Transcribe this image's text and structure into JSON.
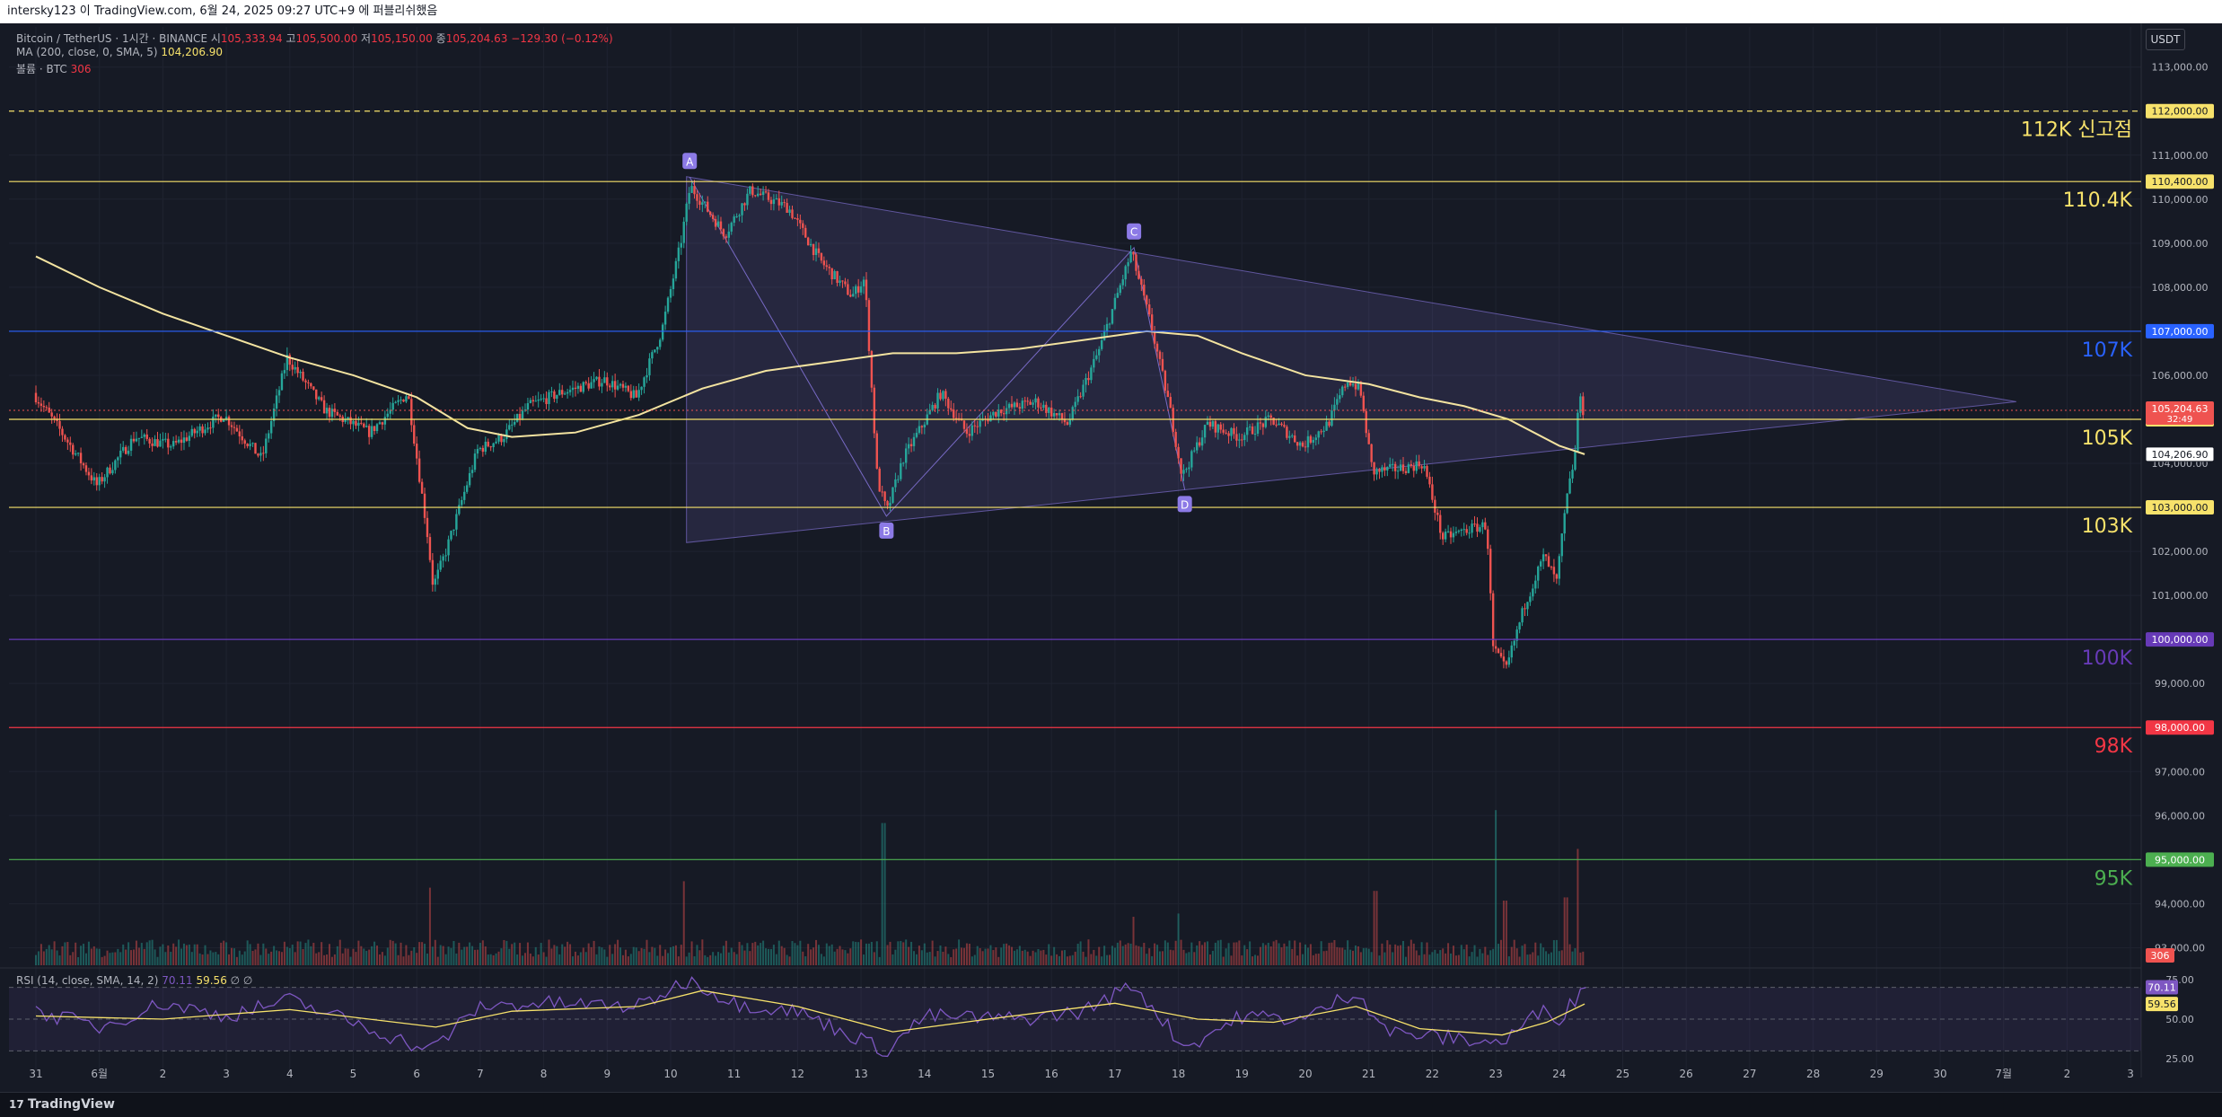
{
  "window": {
    "title": "intersky123 이 TradingView.com, 6월 24, 2025 09:27 UTC+9 에 퍼블리쉬했음"
  },
  "legend": {
    "symbol": "Bitcoin / TetherUS · 1시간 · BINANCE",
    "o_label": "시",
    "o_value": "105,333.94",
    "h_label": "고",
    "h_value": "105,500.00",
    "l_label": "저",
    "l_value": "105,150.00",
    "c_label": "종",
    "c_value": "105,204.63",
    "change": "−129.30 (−0.12%)",
    "ma_text": "MA (200, close, 0, SMA, 5)",
    "ma_value": "104,206.90",
    "vol_text": "볼륨 · BTC",
    "vol_value": "306",
    "rsi_text": "RSI (14, close, SMA, 14, 2)",
    "rsi_value": "70.11",
    "rsi_ma_value": "59.56",
    "rsi_extra": "∅  ∅"
  },
  "currency_button": "USDT",
  "brand": "TradingView",
  "colors": {
    "bg": "#161a25",
    "yellow": "#f7e26b",
    "blue": "#2962ff",
    "purple": "#673ab7",
    "red": "#f23645",
    "green": "#4caf50",
    "up": "#26a69a",
    "down": "#ef5350",
    "pattern": "#8c7ae6"
  },
  "price_axis": {
    "ticks": [
      "113,000.00",
      "111,000.00",
      "110,000.00",
      "109,000.00",
      "108,000.00",
      "106,000.00",
      "104,000.00",
      "102,000.00",
      "101,000.00",
      "99,000.00",
      "97,000.00",
      "96,000.00",
      "94,000.00",
      "93,000.00"
    ],
    "rsi_ticks": [
      "75.00",
      "50.00",
      "25.00"
    ]
  },
  "levels": [
    {
      "price": 112000,
      "tag": "112,000.00",
      "label": "112K 신고점",
      "color": "#f7e26b",
      "dashed": true
    },
    {
      "price": 110400,
      "tag": "110,400.00",
      "label": "110.4K",
      "color": "#f7e26b",
      "dashed": false
    },
    {
      "price": 107000,
      "tag": "107,000.00",
      "label": "107K",
      "color": "#2962ff",
      "dashed": false
    },
    {
      "price": 105000,
      "tag": "105,000.00",
      "label": "105K",
      "color": "#f7e26b",
      "dashed": false
    },
    {
      "price": 103000,
      "tag": "103,000.00",
      "label": "103K",
      "color": "#f7e26b",
      "dashed": false
    },
    {
      "price": 100000,
      "tag": "100,000.00",
      "label": "100K",
      "color": "#673ab7",
      "dashed": false
    },
    {
      "price": 98000,
      "tag": "98,000.00",
      "label": "98K",
      "color": "#f23645",
      "dashed": false
    },
    {
      "price": 95000,
      "tag": "95,000.00",
      "label": "95K",
      "color": "#4caf50",
      "dashed": false
    }
  ],
  "current": {
    "price": 105204.63,
    "tag": "105,204.63",
    "countdown": "32:49",
    "ma_price": 104206.9,
    "ma_tag": "104,206.90",
    "vol_tag": "306",
    "rsi_tag": "70.11",
    "rsi_ma_tag": "59.56"
  },
  "time_axis": [
    "31",
    "6월",
    "2",
    "3",
    "4",
    "5",
    "6",
    "7",
    "8",
    "9",
    "10",
    "11",
    "12",
    "13",
    "14",
    "15",
    "16",
    "17",
    "18",
    "19",
    "20",
    "21",
    "22",
    "23",
    "24",
    "25",
    "26",
    "27",
    "28",
    "29",
    "30",
    "7월",
    "2",
    "3"
  ],
  "pattern": {
    "points": [
      {
        "label": "A",
        "day": 10.3,
        "price": 110500
      },
      {
        "label": "B",
        "day": 13.4,
        "price": 102800
      },
      {
        "label": "C",
        "day": 17.3,
        "price": 108900
      },
      {
        "label": "D",
        "day": 18.1,
        "price": 103400
      }
    ],
    "triangle_apex": {
      "day": 31.2,
      "price": 105400
    },
    "triangle_start": {
      "day": 10.25
    }
  },
  "chart_data": {
    "type": "candlestick",
    "symbol": "Bitcoin / TetherUS",
    "interval": "1시간",
    "key_points": [
      {
        "day": 0.0,
        "price": 105600
      },
      {
        "day": 0.4,
        "price": 104800
      },
      {
        "day": 1.0,
        "price": 103500
      },
      {
        "day": 1.6,
        "price": 104600
      },
      {
        "day": 2.2,
        "price": 104400
      },
      {
        "day": 3.0,
        "price": 105100
      },
      {
        "day": 3.6,
        "price": 104100
      },
      {
        "day": 4.0,
        "price": 106400
      },
      {
        "day": 4.6,
        "price": 105200
      },
      {
        "day": 5.3,
        "price": 104700
      },
      {
        "day": 5.9,
        "price": 105600
      },
      {
        "day": 6.2,
        "price": 102500
      },
      {
        "day": 6.3,
        "price": 101200
      },
      {
        "day": 6.5,
        "price": 102000
      },
      {
        "day": 7.0,
        "price": 104300
      },
      {
        "day": 7.4,
        "price": 104600
      },
      {
        "day": 7.8,
        "price": 105300
      },
      {
        "day": 8.3,
        "price": 105600
      },
      {
        "day": 9.0,
        "price": 105900
      },
      {
        "day": 9.5,
        "price": 105500
      },
      {
        "day": 9.9,
        "price": 107000
      },
      {
        "day": 10.2,
        "price": 109000
      },
      {
        "day": 10.35,
        "price": 110300
      },
      {
        "day": 10.9,
        "price": 109200
      },
      {
        "day": 11.3,
        "price": 110200
      },
      {
        "day": 11.9,
        "price": 109800
      },
      {
        "day": 12.4,
        "price": 108600
      },
      {
        "day": 12.9,
        "price": 107800
      },
      {
        "day": 13.1,
        "price": 108200
      },
      {
        "day": 13.3,
        "price": 103600
      },
      {
        "day": 13.45,
        "price": 102900
      },
      {
        "day": 13.7,
        "price": 104100
      },
      {
        "day": 14.3,
        "price": 105600
      },
      {
        "day": 14.7,
        "price": 104700
      },
      {
        "day": 15.2,
        "price": 105200
      },
      {
        "day": 15.8,
        "price": 105400
      },
      {
        "day": 16.3,
        "price": 104900
      },
      {
        "day": 16.8,
        "price": 106600
      },
      {
        "day": 17.3,
        "price": 108800
      },
      {
        "day": 17.6,
        "price": 107200
      },
      {
        "day": 17.9,
        "price": 105300
      },
      {
        "day": 18.1,
        "price": 103700
      },
      {
        "day": 18.5,
        "price": 104900
      },
      {
        "day": 19.0,
        "price": 104600
      },
      {
        "day": 19.5,
        "price": 105000
      },
      {
        "day": 20.0,
        "price": 104400
      },
      {
        "day": 20.4,
        "price": 104900
      },
      {
        "day": 20.7,
        "price": 105900
      },
      {
        "day": 20.9,
        "price": 105700
      },
      {
        "day": 21.1,
        "price": 103800
      },
      {
        "day": 21.6,
        "price": 103900
      },
      {
        "day": 21.9,
        "price": 104000
      },
      {
        "day": 22.2,
        "price": 102300
      },
      {
        "day": 22.6,
        "price": 102500
      },
      {
        "day": 22.9,
        "price": 102600
      },
      {
        "day": 23.0,
        "price": 99800
      },
      {
        "day": 23.2,
        "price": 99300
      },
      {
        "day": 23.5,
        "price": 100800
      },
      {
        "day": 23.8,
        "price": 101900
      },
      {
        "day": 24.0,
        "price": 101300
      },
      {
        "day": 24.15,
        "price": 103100
      },
      {
        "day": 24.3,
        "price": 104300
      },
      {
        "day": 24.35,
        "price": 105600
      },
      {
        "day": 24.4,
        "price": 105200
      }
    ],
    "ma200_points": [
      {
        "day": 0.0,
        "price": 108700
      },
      {
        "day": 1.0,
        "price": 108000
      },
      {
        "day": 2.0,
        "price": 107400
      },
      {
        "day": 3.0,
        "price": 106900
      },
      {
        "day": 4.0,
        "price": 106400
      },
      {
        "day": 5.0,
        "price": 106000
      },
      {
        "day": 6.0,
        "price": 105500
      },
      {
        "day": 6.8,
        "price": 104800
      },
      {
        "day": 7.5,
        "price": 104600
      },
      {
        "day": 8.5,
        "price": 104700
      },
      {
        "day": 9.5,
        "price": 105100
      },
      {
        "day": 10.5,
        "price": 105700
      },
      {
        "day": 11.5,
        "price": 106100
      },
      {
        "day": 12.5,
        "price": 106300
      },
      {
        "day": 13.5,
        "price": 106500
      },
      {
        "day": 14.5,
        "price": 106500
      },
      {
        "day": 15.5,
        "price": 106600
      },
      {
        "day": 16.5,
        "price": 106800
      },
      {
        "day": 17.5,
        "price": 107000
      },
      {
        "day": 18.3,
        "price": 106900
      },
      {
        "day": 19.0,
        "price": 106500
      },
      {
        "day": 20.0,
        "price": 106000
      },
      {
        "day": 21.0,
        "price": 105800
      },
      {
        "day": 21.8,
        "price": 105500
      },
      {
        "day": 22.5,
        "price": 105300
      },
      {
        "day": 23.2,
        "price": 105000
      },
      {
        "day": 24.0,
        "price": 104400
      },
      {
        "day": 24.4,
        "price": 104207
      }
    ],
    "volume_spikes": [
      {
        "day": 6.2,
        "vol": 2.4
      },
      {
        "day": 10.2,
        "vol": 2.6
      },
      {
        "day": 13.35,
        "vol": 4.4
      },
      {
        "day": 17.3,
        "vol": 1.5
      },
      {
        "day": 18.0,
        "vol": 1.6
      },
      {
        "day": 21.1,
        "vol": 2.3
      },
      {
        "day": 23.0,
        "vol": 4.8
      },
      {
        "day": 23.15,
        "vol": 2.0
      },
      {
        "day": 24.1,
        "vol": 2.1
      },
      {
        "day": 24.3,
        "vol": 3.6
      }
    ],
    "rsi_points": [
      {
        "day": 0.0,
        "value": 55
      },
      {
        "day": 1.0,
        "value": 45
      },
      {
        "day": 2.0,
        "value": 60
      },
      {
        "day": 3.0,
        "value": 52
      },
      {
        "day": 4.0,
        "value": 62
      },
      {
        "day": 5.0,
        "value": 48
      },
      {
        "day": 6.2,
        "value": 30
      },
      {
        "day": 7.0,
        "value": 58
      },
      {
        "day": 8.0,
        "value": 60
      },
      {
        "day": 9.5,
        "value": 58
      },
      {
        "day": 10.3,
        "value": 75
      },
      {
        "day": 11.0,
        "value": 60
      },
      {
        "day": 12.0,
        "value": 55
      },
      {
        "day": 13.4,
        "value": 30
      },
      {
        "day": 14.0,
        "value": 52
      },
      {
        "day": 15.5,
        "value": 50
      },
      {
        "day": 16.5,
        "value": 55
      },
      {
        "day": 17.3,
        "value": 72
      },
      {
        "day": 18.1,
        "value": 32
      },
      {
        "day": 19.0,
        "value": 52
      },
      {
        "day": 20.0,
        "value": 50
      },
      {
        "day": 20.8,
        "value": 68
      },
      {
        "day": 21.3,
        "value": 42
      },
      {
        "day": 22.3,
        "value": 38
      },
      {
        "day": 23.1,
        "value": 35
      },
      {
        "day": 23.8,
        "value": 58
      },
      {
        "day": 24.0,
        "value": 50
      },
      {
        "day": 24.4,
        "value": 70.11
      }
    ],
    "rsi_ma_points": [
      {
        "day": 0.0,
        "value": 52
      },
      {
        "day": 2.0,
        "value": 50
      },
      {
        "day": 4.0,
        "value": 56
      },
      {
        "day": 6.3,
        "value": 45
      },
      {
        "day": 7.5,
        "value": 55
      },
      {
        "day": 9.5,
        "value": 58
      },
      {
        "day": 10.5,
        "value": 68
      },
      {
        "day": 12.0,
        "value": 58
      },
      {
        "day": 13.5,
        "value": 42
      },
      {
        "day": 15.0,
        "value": 50
      },
      {
        "day": 17.0,
        "value": 60
      },
      {
        "day": 18.3,
        "value": 50
      },
      {
        "day": 19.5,
        "value": 48
      },
      {
        "day": 20.8,
        "value": 58
      },
      {
        "day": 21.8,
        "value": 44
      },
      {
        "day": 23.1,
        "value": 40
      },
      {
        "day": 23.8,
        "value": 48
      },
      {
        "day": 24.4,
        "value": 59.56
      }
    ],
    "ylim": [
      92600,
      113300
    ],
    "rsi_ylim": [
      20,
      80
    ],
    "grid": true
  }
}
